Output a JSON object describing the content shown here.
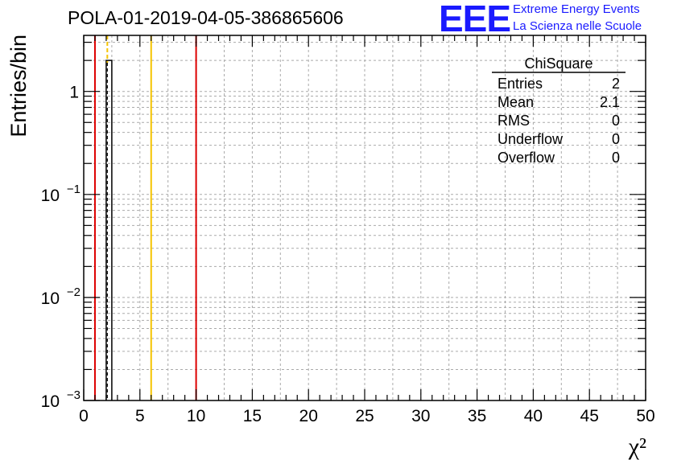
{
  "header": {
    "title": "POLA-01-2019-04-05-386865606",
    "logo_text": "EEE",
    "logo_line1": "Extreme Energy Events",
    "logo_line2": "La Scienza nelle Scuole"
  },
  "stats": {
    "name": "ChiSquare",
    "rows": [
      {
        "label": "Entries",
        "value": "2"
      },
      {
        "label": "Mean",
        "value": "2.1"
      },
      {
        "label": "RMS",
        "value": "0"
      },
      {
        "label": "Underflow",
        "value": "0"
      },
      {
        "label": "Overflow",
        "value": "0"
      }
    ]
  },
  "colors": {
    "logo": "#1a1aff",
    "red_line": "#dd0000",
    "yellow_line": "#f5c400",
    "grid": "#aaaaaa"
  },
  "chart_data": {
    "type": "bar",
    "xlabel": "χ²",
    "ylabel": "Entries/bin",
    "xlim": [
      0,
      50
    ],
    "ylim": [
      0.001,
      3.5
    ],
    "yscale": "log",
    "grid": true,
    "x_ticks": [
      0,
      5,
      10,
      15,
      20,
      25,
      30,
      35,
      40,
      45,
      50
    ],
    "x_tick_labels": [
      "0",
      "5",
      "10",
      "15",
      "20",
      "25",
      "30",
      "35",
      "40",
      "45",
      "50"
    ],
    "y_ticks": [
      {
        "value": 1,
        "base": "1",
        "exp": ""
      },
      {
        "value": 0.1,
        "base": "10",
        "exp": "−1"
      },
      {
        "value": 0.01,
        "base": "10",
        "exp": "−2"
      },
      {
        "value": 0.001,
        "base": "10",
        "exp": "−3"
      }
    ],
    "bins": [
      {
        "x0": 2.0,
        "x1": 2.5,
        "value": 2
      }
    ],
    "vertical_lines": [
      {
        "x": 1.0,
        "color": "#dd0000",
        "style": "solid"
      },
      {
        "x": 2.1,
        "color": "#000000",
        "style": "dashed"
      },
      {
        "x": 2.1,
        "color": "#f5c400",
        "style": "solid-top"
      },
      {
        "x": 6.0,
        "color": "#f5c400",
        "style": "solid"
      },
      {
        "x": 10.0,
        "color": "#dd0000",
        "style": "solid"
      }
    ]
  }
}
